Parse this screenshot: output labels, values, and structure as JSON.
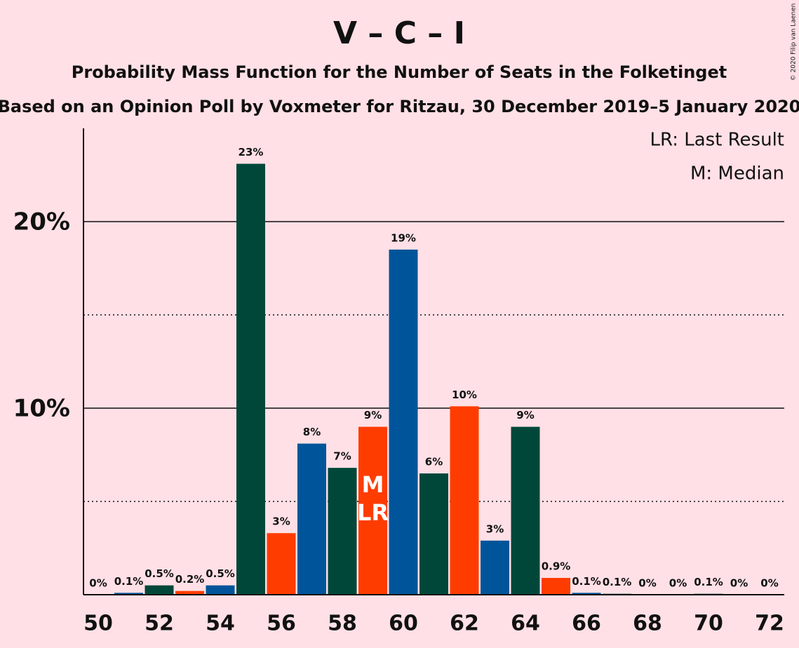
{
  "chart_data": {
    "type": "bar",
    "title": "V – C – I",
    "subtitle": "Probability Mass Function for the Number of Seats in the Folketinget",
    "subtitle2": "Based on an Opinion Poll by Voxmeter for Ritzau, 30 December 2019–5 January 2020",
    "copyright": "© 2020 Filip van Laenen",
    "legend": [
      "LR: Last Result",
      "M: Median"
    ],
    "annotations": [
      {
        "category_index": 9,
        "lines": [
          "M",
          "LR"
        ]
      }
    ],
    "categories": [
      50,
      null,
      52,
      null,
      54,
      null,
      56,
      null,
      58,
      null,
      60,
      null,
      62,
      null,
      64,
      null,
      66,
      null,
      68,
      null,
      70,
      null,
      72
    ],
    "values": [
      0,
      0.1,
      0.5,
      0.2,
      0.5,
      23.1,
      3.3,
      8.1,
      6.8,
      9.0,
      18.5,
      6.5,
      10.1,
      2.9,
      9.0,
      0.9,
      0.1,
      0.05,
      0,
      0,
      0.05,
      0,
      0
    ],
    "value_labels": [
      "0%",
      "0.1%",
      "0.5%",
      "0.2%",
      "0.5%",
      "23%",
      "3%",
      "8%",
      "7%",
      "9%",
      "19%",
      "6%",
      "10%",
      "3%",
      "9%",
      "0.9%",
      "0.1%",
      "0.1%",
      "0%",
      "0%",
      "0.1%",
      "0%",
      "0%"
    ],
    "colors": [
      "#ff3c00",
      "#00559a",
      "#00473a",
      "#ff3c00",
      "#00559a",
      "#00473a",
      "#ff3c00",
      "#00559a",
      "#00473a",
      "#ff3c00",
      "#00559a",
      "#00473a",
      "#ff3c00",
      "#00559a",
      "#00473a",
      "#ff3c00",
      "#00559a",
      "#00473a",
      "#ff3c00",
      "#00559a",
      "#00473a",
      "#ff3c00",
      "#00559a"
    ],
    "ylim": [
      0,
      25
    ],
    "yticks": [
      {
        "value": 10,
        "label": "10%"
      },
      {
        "value": 20,
        "label": "20%"
      }
    ],
    "minor_yticks": [
      5,
      15
    ],
    "grid": true
  }
}
